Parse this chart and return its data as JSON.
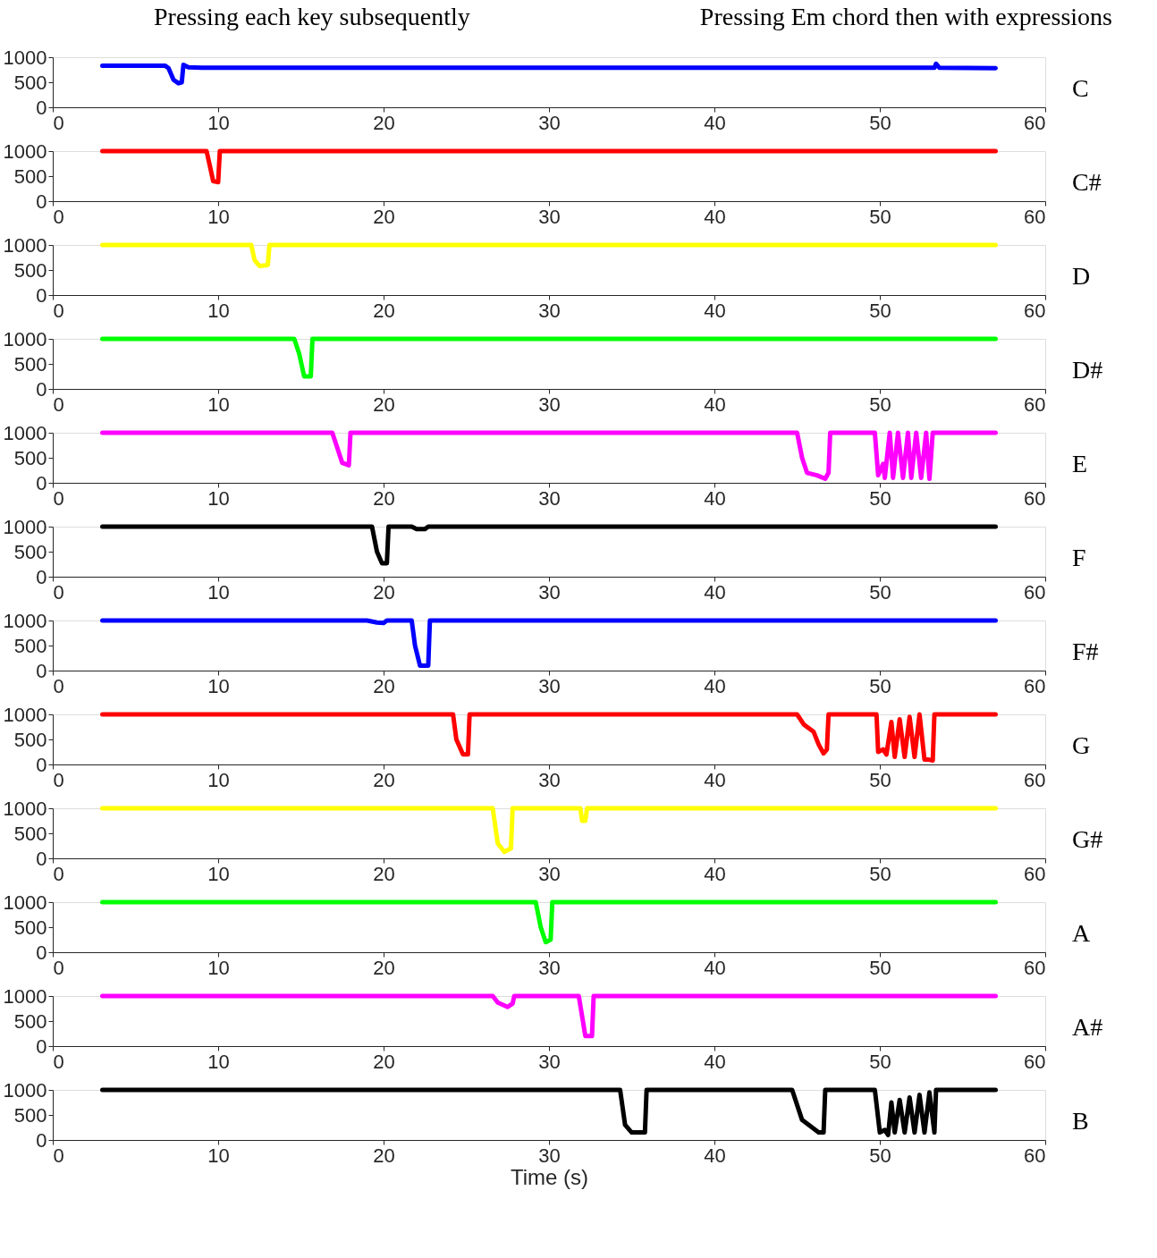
{
  "chart_data": [
    {
      "type": "line",
      "annotations": [
        "Pressing each key subsequently",
        "Pressing Em chord then with expressions"
      ],
      "xlim": [
        0,
        60
      ],
      "xticks": [
        0,
        10,
        20,
        30,
        40,
        50,
        60
      ],
      "ylim": [
        0,
        1000
      ],
      "yticks": [
        0,
        500,
        1000
      ],
      "grid": false,
      "line_style": "solid",
      "marker": "none",
      "series": [
        {
          "name": "C",
          "color": "#0000ff",
          "x": [
            3,
            6.8,
            7.0,
            7.3,
            7.6,
            7.8,
            7.9,
            8.2,
            9,
            20,
            30,
            53.3,
            53.4,
            53.6,
            57
          ],
          "values": [
            830,
            830,
            780,
            550,
            480,
            500,
            850,
            800,
            790,
            790,
            790,
            790,
            870,
            790,
            780
          ]
        }
      ]
    },
    {
      "type": "line",
      "xlim": [
        0,
        60
      ],
      "xticks": [
        0,
        10,
        20,
        30,
        40,
        50,
        60
      ],
      "ylim": [
        0,
        1000
      ],
      "yticks": [
        0,
        500,
        1000
      ],
      "grid": false,
      "line_style": "solid",
      "marker": "none",
      "series": [
        {
          "name": "C#",
          "color": "#ff0000",
          "x": [
            3,
            9.3,
            9.5,
            9.7,
            10,
            10.1,
            57
          ],
          "values": [
            1000,
            1000,
            700,
            400,
            380,
            1000,
            1000
          ]
        }
      ]
    },
    {
      "type": "line",
      "xlim": [
        0,
        60
      ],
      "xticks": [
        0,
        10,
        20,
        30,
        40,
        50,
        60
      ],
      "ylim": [
        0,
        1000
      ],
      "yticks": [
        0,
        500,
        1000
      ],
      "grid": false,
      "line_style": "solid",
      "marker": "none",
      "series": [
        {
          "name": "D",
          "color": "#ffff00",
          "x": [
            3,
            12.0,
            12.2,
            12.5,
            13.0,
            13.1,
            57
          ],
          "values": [
            1000,
            1000,
            700,
            580,
            600,
            1000,
            1000
          ]
        }
      ]
    },
    {
      "type": "line",
      "xlim": [
        0,
        60
      ],
      "xticks": [
        0,
        10,
        20,
        30,
        40,
        50,
        60
      ],
      "ylim": [
        0,
        1000
      ],
      "yticks": [
        0,
        500,
        1000
      ],
      "grid": false,
      "line_style": "solid",
      "marker": "none",
      "series": [
        {
          "name": "D#",
          "color": "#00ff00",
          "x": [
            3,
            14.6,
            14.9,
            15.2,
            15.6,
            15.7,
            57
          ],
          "values": [
            1000,
            1000,
            700,
            250,
            250,
            1000,
            1000
          ]
        }
      ]
    },
    {
      "type": "line",
      "xlim": [
        0,
        60
      ],
      "xticks": [
        0,
        10,
        20,
        30,
        40,
        50,
        60
      ],
      "ylim": [
        0,
        1000
      ],
      "yticks": [
        0,
        500,
        1000
      ],
      "grid": false,
      "line_style": "solid",
      "marker": "none",
      "series": [
        {
          "name": "E",
          "color": "#ff00ff",
          "x": [
            3,
            16.9,
            17.2,
            17.5,
            17.9,
            18.0,
            45.0,
            45.3,
            45.6,
            46.2,
            46.7,
            46.9,
            47.0,
            49.7,
            49.9,
            50.2,
            50.3,
            50.6,
            50.8,
            51.1,
            51.4,
            51.7,
            51.9,
            52.2,
            52.5,
            52.8,
            53.0,
            53.2,
            57
          ],
          "values": [
            1000,
            1000,
            700,
            400,
            350,
            1000,
            1000,
            500,
            200,
            150,
            80,
            200,
            1000,
            1000,
            150,
            380,
            100,
            1000,
            100,
            1000,
            100,
            1000,
            100,
            1000,
            100,
            1000,
            80,
            1000,
            1000
          ]
        }
      ]
    },
    {
      "type": "line",
      "xlim": [
        0,
        60
      ],
      "xticks": [
        0,
        10,
        20,
        30,
        40,
        50,
        60
      ],
      "ylim": [
        0,
        1000
      ],
      "yticks": [
        0,
        500,
        1000
      ],
      "grid": false,
      "line_style": "solid",
      "marker": "none",
      "series": [
        {
          "name": "F",
          "color": "#000000",
          "x": [
            3,
            19.3,
            19.6,
            19.9,
            20.2,
            20.3,
            21.7,
            22.0,
            22.5,
            22.7,
            57
          ],
          "values": [
            1000,
            1000,
            500,
            270,
            270,
            1000,
            1000,
            950,
            950,
            1000,
            1000
          ]
        }
      ]
    },
    {
      "type": "line",
      "xlim": [
        0,
        60
      ],
      "xticks": [
        0,
        10,
        20,
        30,
        40,
        50,
        60
      ],
      "ylim": [
        0,
        1000
      ],
      "yticks": [
        0,
        500,
        1000
      ],
      "grid": false,
      "line_style": "solid",
      "marker": "none",
      "series": [
        {
          "name": "F#",
          "color": "#0000ff",
          "x": [
            3,
            19.0,
            19.6,
            20.0,
            20.2,
            21.7,
            21.9,
            22.2,
            22.7,
            22.8,
            57
          ],
          "values": [
            1000,
            1000,
            960,
            950,
            1000,
            1000,
            500,
            100,
            100,
            1000,
            1000
          ]
        }
      ]
    },
    {
      "type": "line",
      "xlim": [
        0,
        60
      ],
      "xticks": [
        0,
        10,
        20,
        30,
        40,
        50,
        60
      ],
      "ylim": [
        0,
        1000
      ],
      "yticks": [
        0,
        500,
        1000
      ],
      "grid": false,
      "line_style": "solid",
      "marker": "none",
      "series": [
        {
          "name": "G",
          "color": "#ff0000",
          "x": [
            3,
            24.2,
            24.4,
            24.8,
            25.1,
            25.2,
            45.0,
            45.4,
            46.0,
            46.3,
            46.6,
            46.8,
            46.9,
            49.8,
            49.9,
            50.2,
            50.4,
            50.7,
            50.9,
            51.2,
            51.5,
            51.8,
            52.1,
            52.4,
            52.7,
            52.9,
            53.2,
            53.3,
            57
          ],
          "values": [
            1000,
            1000,
            500,
            200,
            200,
            1000,
            1000,
            800,
            650,
            400,
            220,
            300,
            1000,
            1000,
            250,
            300,
            200,
            850,
            150,
            900,
            150,
            950,
            150,
            1000,
            100,
            100,
            80,
            1000,
            1000
          ]
        }
      ]
    },
    {
      "type": "line",
      "xlim": [
        0,
        60
      ],
      "xticks": [
        0,
        10,
        20,
        30,
        40,
        50,
        60
      ],
      "ylim": [
        0,
        1000
      ],
      "yticks": [
        0,
        500,
        1000
      ],
      "grid": false,
      "line_style": "solid",
      "marker": "none",
      "series": [
        {
          "name": "G#",
          "color": "#ffff00",
          "x": [
            3,
            26.6,
            26.9,
            27.3,
            27.7,
            27.8,
            31.9,
            32.0,
            32.2,
            32.3,
            57
          ],
          "values": [
            1000,
            1000,
            300,
            130,
            200,
            1000,
            1000,
            750,
            750,
            1000,
            1000
          ]
        }
      ]
    },
    {
      "type": "line",
      "xlim": [
        0,
        60
      ],
      "xticks": [
        0,
        10,
        20,
        30,
        40,
        50,
        60
      ],
      "ylim": [
        0,
        1000
      ],
      "yticks": [
        0,
        500,
        1000
      ],
      "grid": false,
      "line_style": "solid",
      "marker": "none",
      "series": [
        {
          "name": "A",
          "color": "#00ff00",
          "x": [
            3,
            29.2,
            29.5,
            29.8,
            30.1,
            30.2,
            57
          ],
          "values": [
            1000,
            1000,
            500,
            200,
            250,
            1000,
            1000
          ]
        }
      ]
    },
    {
      "type": "line",
      "xlim": [
        0,
        60
      ],
      "xticks": [
        0,
        10,
        20,
        30,
        40,
        50,
        60
      ],
      "ylim": [
        0,
        1000
      ],
      "yticks": [
        0,
        500,
        1000
      ],
      "grid": false,
      "line_style": "solid",
      "marker": "none",
      "series": [
        {
          "name": "A#",
          "color": "#ff00ff",
          "x": [
            3,
            26.6,
            26.9,
            27.5,
            27.8,
            27.9,
            31.8,
            32.0,
            32.2,
            32.6,
            32.7,
            57
          ],
          "values": [
            1000,
            1000,
            870,
            780,
            850,
            1000,
            1000,
            600,
            200,
            200,
            1000,
            1000
          ]
        }
      ]
    },
    {
      "type": "line",
      "xlabel": "Time (s)",
      "xlim": [
        0,
        60
      ],
      "xticks": [
        0,
        10,
        20,
        30,
        40,
        50,
        60
      ],
      "ylim": [
        0,
        1000
      ],
      "yticks": [
        0,
        500,
        1000
      ],
      "grid": false,
      "line_style": "solid",
      "marker": "none",
      "series": [
        {
          "name": "B",
          "color": "#000000",
          "x": [
            3,
            34.3,
            34.6,
            35.0,
            35.8,
            35.9,
            44.7,
            45.3,
            46.3,
            46.6,
            46.7,
            49.7,
            50.0,
            50.3,
            50.5,
            50.7,
            50.9,
            51.2,
            51.5,
            51.8,
            52.1,
            52.4,
            52.7,
            53.0,
            53.3,
            53.4,
            57
          ],
          "values": [
            1000,
            1000,
            300,
            150,
            150,
            1000,
            1000,
            400,
            150,
            150,
            1000,
            1000,
            150,
            200,
            100,
            750,
            150,
            800,
            150,
            850,
            150,
            900,
            150,
            950,
            150,
            1000,
            1000
          ]
        }
      ]
    }
  ]
}
